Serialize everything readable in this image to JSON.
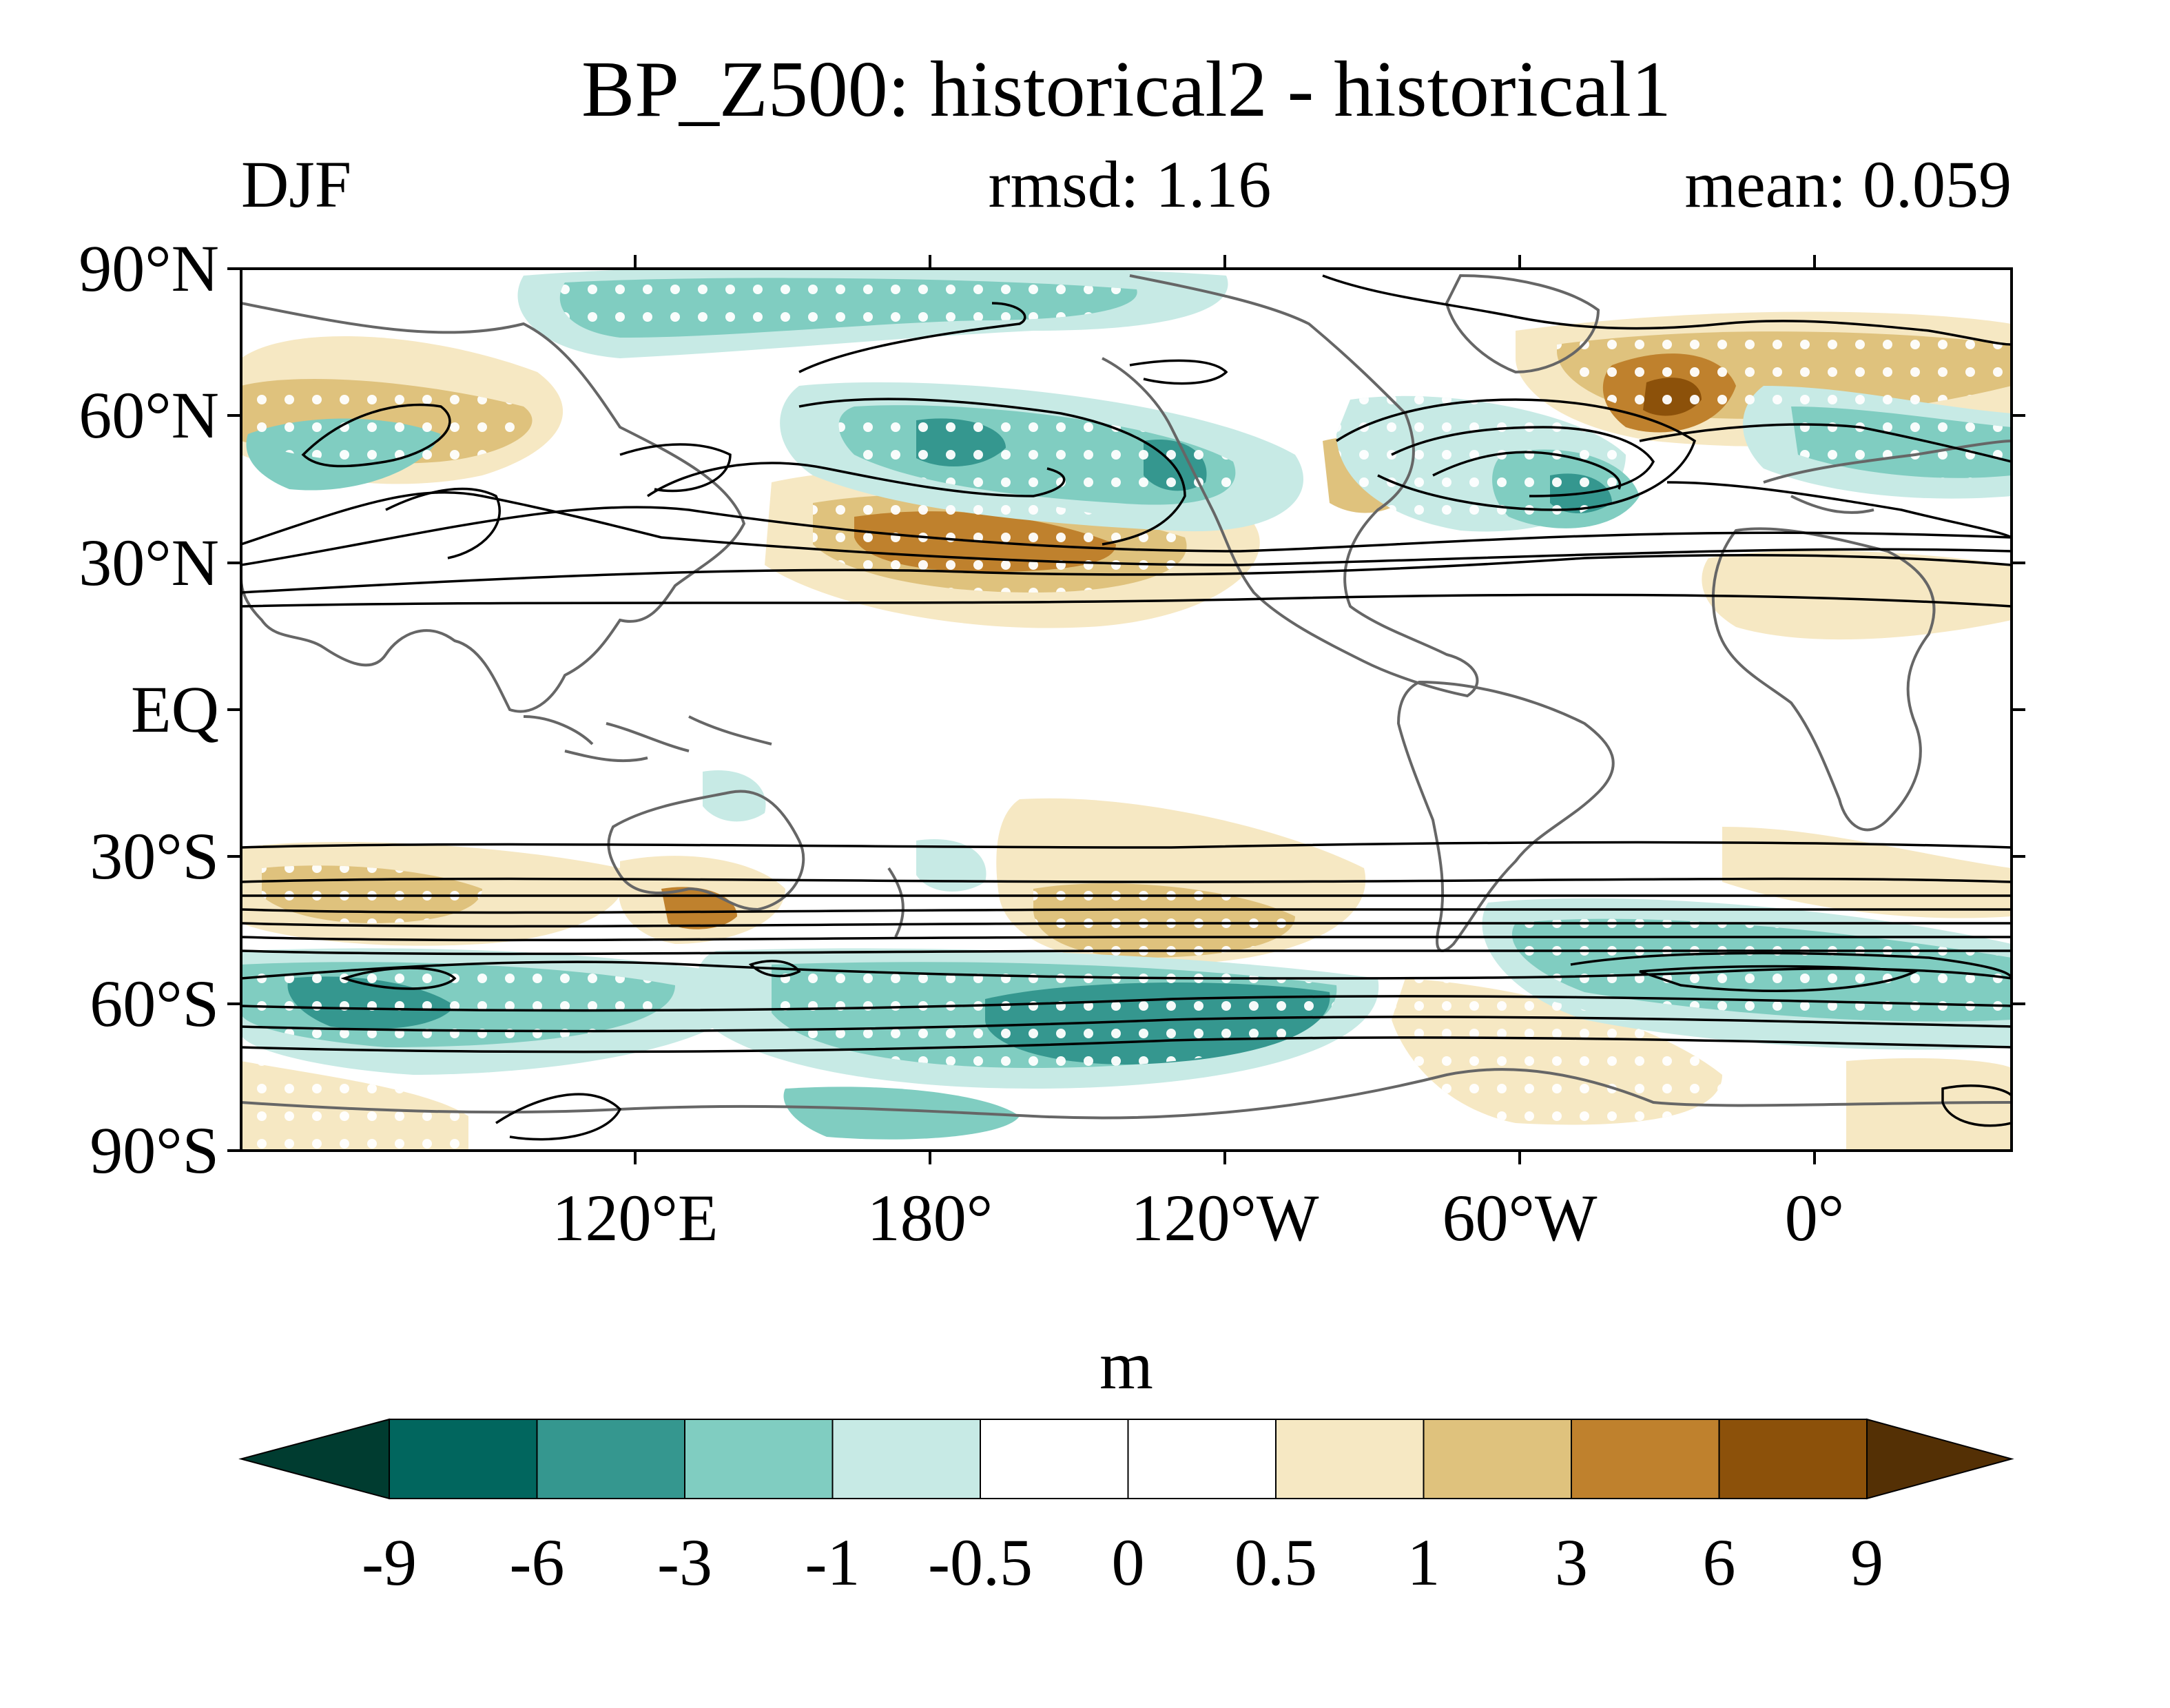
{
  "title": "BP_Z500: historical2 - historical1",
  "season": "DJF",
  "rmsd": "rmsd: 1.16",
  "mean": "mean: 0.059",
  "units": "m",
  "lat_labels": [
    "90°N",
    "60°N",
    "30°N",
    "EQ",
    "30°S",
    "60°S",
    "90°S"
  ],
  "lon_labels": [
    "120°E",
    "180°",
    "120°W",
    "60°W",
    "0°"
  ],
  "colorbar": {
    "levels": [
      "-9",
      "-6",
      "-3",
      "-1",
      "-0.5",
      "0",
      "0.5",
      "1",
      "3",
      "6",
      "9"
    ],
    "colors": [
      "#003c30",
      "#01665e",
      "#35978f",
      "#80cdc1",
      "#c7eae5",
      "#ffffff",
      "#ffffff",
      "#f6e8c3",
      "#dfc27d",
      "#bf812d",
      "#8c510a",
      "#543005"
    ]
  }
}
